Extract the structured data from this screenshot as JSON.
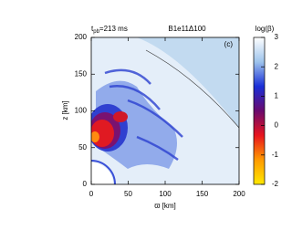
{
  "chart_data": {
    "type": "heatmap",
    "title": "B1e11Δ100",
    "time_symbol": "t",
    "time_subscript": "pb",
    "time_value": "=213 ms",
    "annotation": "(c)",
    "x_label": "ϖ [km]",
    "y_label": "z [km]",
    "xlim": [
      0,
      200
    ],
    "ylim": [
      0,
      200
    ],
    "xticks": [
      0,
      50,
      100,
      150,
      200
    ],
    "yticks": [
      0,
      50,
      100,
      150,
      200
    ],
    "colorbar": {
      "label": "log(β)",
      "lim": [
        -2,
        3
      ],
      "ticks": [
        -2,
        -1,
        0,
        1,
        2,
        3
      ],
      "colors": [
        "#ffe800",
        "#ff9a00",
        "#e8141e",
        "#6a0a6e",
        "#1a2fd8",
        "#9ec4ec",
        "#ffffff"
      ]
    }
  }
}
